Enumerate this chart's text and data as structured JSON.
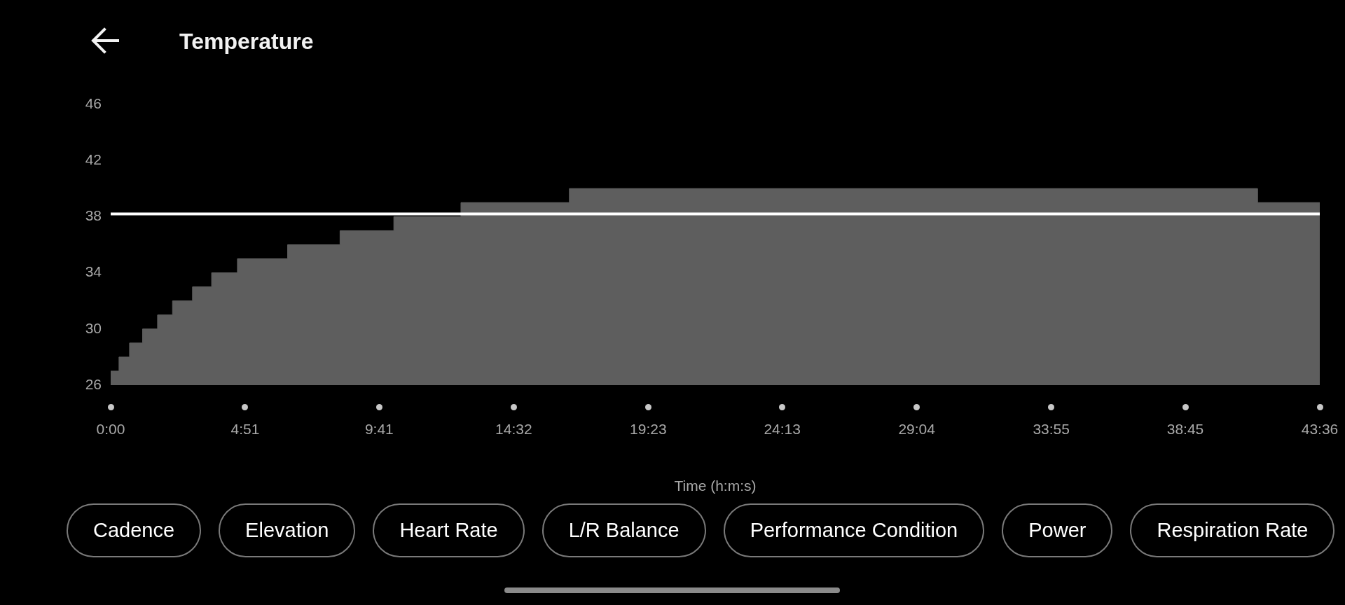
{
  "chart_data": {
    "type": "area",
    "title": "Temperature",
    "xlabel": "Time (h:m:s)",
    "x": [
      0,
      0.3,
      0.3,
      0.68,
      0.68,
      1.15,
      1.15,
      1.69,
      1.69,
      2.23,
      2.23,
      2.95,
      2.95,
      3.64,
      3.64,
      4.57,
      4.57,
      6.38,
      6.38,
      8.27,
      8.27,
      10.21,
      10.21,
      12.63,
      12.63,
      16.54,
      16.54,
      41.35,
      41.35,
      43.6
    ],
    "values": [
      27,
      27,
      28,
      28,
      29,
      29,
      30,
      30,
      31,
      31,
      32,
      32,
      33,
      33,
      34,
      34,
      35,
      35,
      36,
      36,
      37,
      37,
      38,
      38,
      39,
      39,
      40,
      40,
      39,
      39
    ],
    "color": "#5e5e5e",
    "xlim": [
      0,
      43.6
    ],
    "xticks": [
      {
        "value": 0,
        "label": "0:00"
      },
      {
        "value": 4.85,
        "label": "4:51"
      },
      {
        "value": 9.6833,
        "label": "9:41"
      },
      {
        "value": 14.5333,
        "label": "14:32"
      },
      {
        "value": 19.3833,
        "label": "19:23"
      },
      {
        "value": 24.2167,
        "label": "24:13"
      },
      {
        "value": 29.0667,
        "label": "29:04"
      },
      {
        "value": 33.9167,
        "label": "33:55"
      },
      {
        "value": 38.75,
        "label": "38:45"
      },
      {
        "value": 43.6,
        "label": "43:36"
      }
    ],
    "ylim": [
      26,
      46
    ],
    "yticks": [
      26,
      30,
      34,
      38,
      42,
      46
    ],
    "ref_lines": [
      {
        "axis": "y",
        "value": 38.2,
        "color": "#ffffff"
      }
    ],
    "grid": false,
    "legend": false,
    "annotations": [
      "Cadence",
      "Elevation",
      "Heart Rate",
      "L/R Balance",
      "Performance Condition",
      "Power",
      "Respiration Rate"
    ]
  }
}
